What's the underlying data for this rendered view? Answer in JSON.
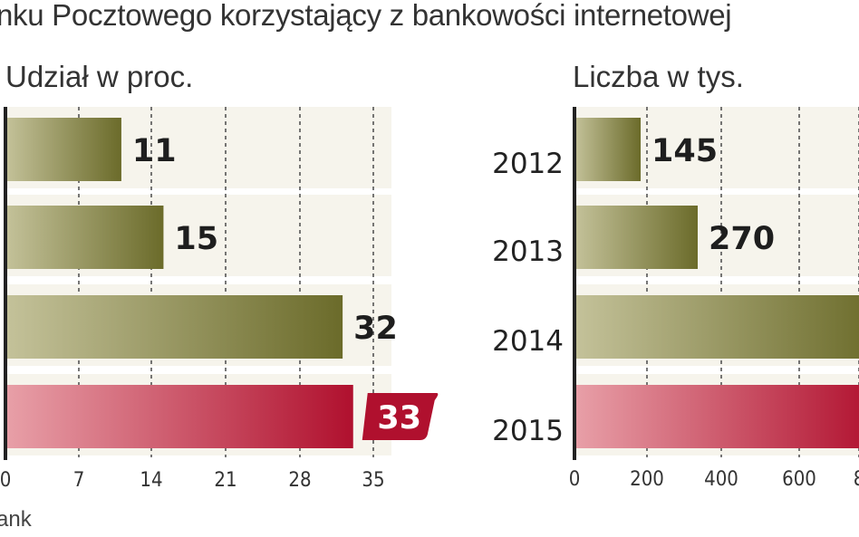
{
  "header": {
    "title": "nku Pocztowego korzystający z bankowości internetowej",
    "source": "ank"
  },
  "colors": {
    "olive_dark": "#6b6b2a",
    "olive_light": "#c4c29a",
    "red_dark": "#b0102e",
    "red_light": "#e8a0a8",
    "axis": "#222222",
    "grid": "#555555"
  },
  "chart_data": [
    {
      "type": "bar",
      "orientation": "horizontal",
      "title": "Udział w proc.",
      "categories": [
        "2012",
        "2013",
        "2014",
        "2015"
      ],
      "values": [
        11,
        15,
        32,
        33
      ],
      "value_labels": [
        "11",
        "15",
        "32",
        "33"
      ],
      "xticks": [
        "0",
        "7",
        "14",
        "21",
        "28",
        "35"
      ],
      "xlim": [
        0,
        35
      ],
      "grid": "vertical dashed",
      "highlight_index": 3
    },
    {
      "type": "bar",
      "orientation": "horizontal",
      "title": "Liczba w tys.",
      "categories": [
        "2012",
        "2013",
        "2014",
        "2015"
      ],
      "values": [
        145,
        270,
        null,
        null
      ],
      "value_labels": [
        "145",
        "270",
        "",
        ""
      ],
      "xticks": [
        "0",
        "200",
        "400",
        "600",
        "8"
      ],
      "xlim": [
        0,
        800
      ],
      "grid": "vertical dashed",
      "highlight_index": 3
    }
  ]
}
